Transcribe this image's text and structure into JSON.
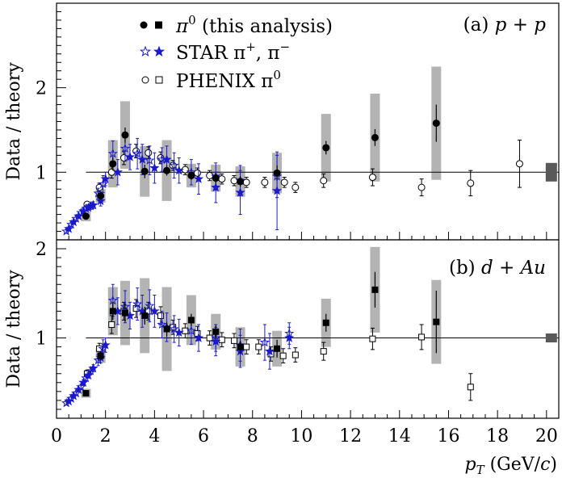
{
  "chart_data": {
    "type": "scatter",
    "xlabel_var": "p",
    "xlabel_sub": "T",
    "xlabel_unit_pre": "(GeV/",
    "xlabel_unit_var": "c",
    "xlabel_unit_post": ")",
    "xlim": [
      0,
      20.5
    ],
    "x_ticks": [
      0,
      2,
      4,
      6,
      8,
      10,
      12,
      14,
      16,
      18,
      20
    ],
    "legend": {
      "pi0_label": "π",
      "pi0_sup": "0",
      "pi0_rest": " (this analysis)",
      "star_label": "STAR π",
      "star_sup1": "+",
      "star_mid": ", π",
      "star_sup2": "−",
      "phenix_label": "PHENIX π",
      "phenix_sup": "0"
    },
    "colors": {
      "star": "#1a1acc",
      "band": "#b3b3b3",
      "norm_box": "#595959"
    },
    "panels": [
      {
        "id": "a",
        "label_pre": "(a)",
        "label_system": "p + p",
        "ylabel": "Data / theory",
        "ylim": [
          0.2,
          3.0
        ],
        "y_ticks": [
          1,
          2
        ],
        "this_analysis": [
          {
            "x": 1.2,
            "y": 0.48,
            "err": 0.03,
            "sys": 0.06
          },
          {
            "x": 1.8,
            "y": 0.72,
            "err": 0.04,
            "sys": 0.08
          },
          {
            "x": 2.3,
            "y": 1.1,
            "err": 0.08,
            "sys": 0.28
          },
          {
            "x": 2.8,
            "y": 1.44,
            "err": 0.09,
            "sys": 0.4
          },
          {
            "x": 3.6,
            "y": 1.01,
            "err": 0.08,
            "sys": 0.3
          },
          {
            "x": 4.5,
            "y": 1.02,
            "err": 0.06,
            "sys": 0.36
          },
          {
            "x": 5.5,
            "y": 0.96,
            "err": 0.05,
            "sys": 0.14
          },
          {
            "x": 6.5,
            "y": 0.93,
            "err": 0.06,
            "sys": 0.16
          },
          {
            "x": 7.5,
            "y": 0.89,
            "err": 0.06,
            "sys": 0.18
          },
          {
            "x": 9.0,
            "y": 0.99,
            "err": 0.09,
            "sys": 0.24
          },
          {
            "x": 11.0,
            "y": 1.29,
            "err": 0.08,
            "sys": 0.4
          },
          {
            "x": 13.0,
            "y": 1.41,
            "err": 0.1,
            "sys": 0.52
          },
          {
            "x": 15.5,
            "y": 1.58,
            "err": 0.22,
            "sys": 0.67
          }
        ],
        "star_plus": [
          {
            "x": 0.4,
            "y": 0.3,
            "err": 0.02
          },
          {
            "x": 0.6,
            "y": 0.38,
            "err": 0.02
          },
          {
            "x": 0.8,
            "y": 0.45,
            "err": 0.02
          },
          {
            "x": 1.0,
            "y": 0.52,
            "err": 0.03
          },
          {
            "x": 1.2,
            "y": 0.57,
            "err": 0.03
          },
          {
            "x": 1.4,
            "y": 0.6,
            "err": 0.04
          },
          {
            "x": 1.7,
            "y": 0.75,
            "err": 0.06
          },
          {
            "x": 1.9,
            "y": 0.86,
            "err": 0.1
          },
          {
            "x": 2.3,
            "y": 1.22,
            "err": 0.15
          },
          {
            "x": 2.8,
            "y": 1.28,
            "err": 0.15
          },
          {
            "x": 3.3,
            "y": 1.22,
            "err": 0.18
          },
          {
            "x": 3.8,
            "y": 1.14,
            "err": 0.17
          },
          {
            "x": 4.3,
            "y": 1.15,
            "err": 0.14
          },
          {
            "x": 4.8,
            "y": 1.08,
            "err": 0.15
          },
          {
            "x": 5.5,
            "y": 1.0,
            "err": 0.15
          },
          {
            "x": 6.5,
            "y": 0.95,
            "err": 0.16
          },
          {
            "x": 7.5,
            "y": 0.9,
            "err": 0.18
          },
          {
            "x": 9.0,
            "y": 0.95,
            "err": 0.25
          }
        ],
        "star_minus": [
          {
            "x": 0.5,
            "y": 0.33,
            "err": 0.02
          },
          {
            "x": 0.7,
            "y": 0.41,
            "err": 0.02
          },
          {
            "x": 0.9,
            "y": 0.48,
            "err": 0.02
          },
          {
            "x": 1.1,
            "y": 0.54,
            "err": 0.03
          },
          {
            "x": 1.3,
            "y": 0.58,
            "err": 0.03
          },
          {
            "x": 1.5,
            "y": 0.61,
            "err": 0.04
          },
          {
            "x": 1.8,
            "y": 0.66,
            "err": 0.06
          },
          {
            "x": 2.0,
            "y": 0.92,
            "err": 0.08
          },
          {
            "x": 2.5,
            "y": 1.0,
            "err": 0.15
          },
          {
            "x": 3.0,
            "y": 1.18,
            "err": 0.15
          },
          {
            "x": 3.5,
            "y": 1.15,
            "err": 0.18
          },
          {
            "x": 4.0,
            "y": 1.05,
            "err": 0.18
          },
          {
            "x": 4.5,
            "y": 1.15,
            "err": 0.16
          },
          {
            "x": 5.0,
            "y": 1.02,
            "err": 0.15
          },
          {
            "x": 5.8,
            "y": 0.92,
            "err": 0.18
          },
          {
            "x": 6.5,
            "y": 0.82,
            "err": 0.18
          },
          {
            "x": 7.5,
            "y": 0.76,
            "err": 0.26
          },
          {
            "x": 9.0,
            "y": 0.78,
            "err": 0.46
          }
        ],
        "phenix": [
          {
            "x": 1.25,
            "y": 0.62,
            "err": 0.03
          },
          {
            "x": 1.75,
            "y": 0.82,
            "err": 0.05
          },
          {
            "x": 2.25,
            "y": 1.0,
            "err": 0.07
          },
          {
            "x": 2.75,
            "y": 1.17,
            "err": 0.08
          },
          {
            "x": 3.25,
            "y": 1.25,
            "err": 0.08
          },
          {
            "x": 3.75,
            "y": 1.23,
            "err": 0.07
          },
          {
            "x": 4.25,
            "y": 1.17,
            "err": 0.07
          },
          {
            "x": 4.75,
            "y": 1.08,
            "err": 0.06
          },
          {
            "x": 5.25,
            "y": 1.03,
            "err": 0.06
          },
          {
            "x": 5.75,
            "y": 0.99,
            "err": 0.06
          },
          {
            "x": 6.25,
            "y": 0.96,
            "err": 0.06
          },
          {
            "x": 6.75,
            "y": 0.92,
            "err": 0.06
          },
          {
            "x": 7.25,
            "y": 0.9,
            "err": 0.06
          },
          {
            "x": 7.75,
            "y": 0.88,
            "err": 0.06
          },
          {
            "x": 8.5,
            "y": 0.88,
            "err": 0.06
          },
          {
            "x": 9.3,
            "y": 0.88,
            "err": 0.06
          },
          {
            "x": 9.75,
            "y": 0.82,
            "err": 0.06
          },
          {
            "x": 10.9,
            "y": 0.9,
            "err": 0.08
          },
          {
            "x": 12.9,
            "y": 0.94,
            "err": 0.1
          },
          {
            "x": 14.9,
            "y": 0.82,
            "err": 0.1
          },
          {
            "x": 16.9,
            "y": 0.87,
            "err": 0.15
          },
          {
            "x": 18.9,
            "y": 1.1,
            "err": 0.28
          }
        ],
        "norm_box": {
          "x": 20.0,
          "y": 1.0,
          "half_height": 0.11
        }
      },
      {
        "id": "b",
        "label_pre": "(b)",
        "label_system": "d + Au",
        "ylabel": "Data / theory",
        "ylim": [
          0.1,
          2.1
        ],
        "y_ticks": [
          1,
          2
        ],
        "this_analysis": [
          {
            "x": 1.2,
            "y": 0.38,
            "err": 0.03,
            "sys": 0.05
          },
          {
            "x": 1.8,
            "y": 0.8,
            "err": 0.05,
            "sys": 0.08
          },
          {
            "x": 2.3,
            "y": 1.3,
            "err": 0.1,
            "sys": 0.27
          },
          {
            "x": 2.8,
            "y": 1.28,
            "err": 0.1,
            "sys": 0.36
          },
          {
            "x": 3.6,
            "y": 1.25,
            "err": 0.1,
            "sys": 0.42
          },
          {
            "x": 4.5,
            "y": 1.1,
            "err": 0.08,
            "sys": 0.47
          },
          {
            "x": 5.5,
            "y": 1.2,
            "err": 0.07,
            "sys": 0.28
          },
          {
            "x": 6.5,
            "y": 1.07,
            "err": 0.07,
            "sys": 0.2
          },
          {
            "x": 7.5,
            "y": 0.9,
            "err": 0.07,
            "sys": 0.22
          },
          {
            "x": 9.0,
            "y": 0.88,
            "err": 0.1,
            "sys": 0.2
          },
          {
            "x": 11.0,
            "y": 1.17,
            "err": 0.1,
            "sys": 0.27
          },
          {
            "x": 13.0,
            "y": 1.54,
            "err": 0.2,
            "sys": 0.48
          },
          {
            "x": 15.5,
            "y": 1.18,
            "err": 0.35,
            "sys": 0.47
          }
        ],
        "star_plus": [
          {
            "x": 0.4,
            "y": 0.27,
            "err": 0.02
          },
          {
            "x": 0.6,
            "y": 0.32,
            "err": 0.02
          },
          {
            "x": 0.8,
            "y": 0.38,
            "err": 0.02
          },
          {
            "x": 1.0,
            "y": 0.45,
            "err": 0.03
          },
          {
            "x": 1.2,
            "y": 0.55,
            "err": 0.03
          },
          {
            "x": 1.4,
            "y": 0.63,
            "err": 0.04
          },
          {
            "x": 1.7,
            "y": 0.75,
            "err": 0.06
          },
          {
            "x": 1.9,
            "y": 0.88,
            "err": 0.1
          },
          {
            "x": 2.3,
            "y": 1.42,
            "err": 0.18
          },
          {
            "x": 2.8,
            "y": 1.35,
            "err": 0.18
          },
          {
            "x": 3.3,
            "y": 1.38,
            "err": 0.18
          },
          {
            "x": 3.8,
            "y": 1.36,
            "err": 0.18
          },
          {
            "x": 4.3,
            "y": 1.15,
            "err": 0.15
          },
          {
            "x": 4.8,
            "y": 1.1,
            "err": 0.15
          },
          {
            "x": 5.5,
            "y": 1.08,
            "err": 0.15
          },
          {
            "x": 6.5,
            "y": 1.0,
            "err": 0.15
          },
          {
            "x": 7.5,
            "y": 0.92,
            "err": 0.18
          },
          {
            "x": 8.5,
            "y": 0.95,
            "err": 0.2
          },
          {
            "x": 9.5,
            "y": 1.05,
            "err": 0.12
          }
        ],
        "star_minus": [
          {
            "x": 0.5,
            "y": 0.29,
            "err": 0.02
          },
          {
            "x": 0.7,
            "y": 0.35,
            "err": 0.02
          },
          {
            "x": 0.9,
            "y": 0.42,
            "err": 0.02
          },
          {
            "x": 1.1,
            "y": 0.5,
            "err": 0.03
          },
          {
            "x": 1.3,
            "y": 0.58,
            "err": 0.03
          },
          {
            "x": 1.5,
            "y": 0.66,
            "err": 0.04
          },
          {
            "x": 1.8,
            "y": 0.78,
            "err": 0.06
          },
          {
            "x": 2.0,
            "y": 0.92,
            "err": 0.08
          },
          {
            "x": 2.5,
            "y": 1.3,
            "err": 0.15
          },
          {
            "x": 3.0,
            "y": 1.25,
            "err": 0.15
          },
          {
            "x": 3.5,
            "y": 1.3,
            "err": 0.18
          },
          {
            "x": 4.0,
            "y": 1.3,
            "err": 0.18
          },
          {
            "x": 4.5,
            "y": 1.12,
            "err": 0.16
          },
          {
            "x": 5.0,
            "y": 1.06,
            "err": 0.15
          },
          {
            "x": 5.8,
            "y": 1.0,
            "err": 0.15
          },
          {
            "x": 6.5,
            "y": 0.96,
            "err": 0.16
          },
          {
            "x": 7.5,
            "y": 0.85,
            "err": 0.18
          },
          {
            "x": 8.7,
            "y": 0.85,
            "err": 0.2
          },
          {
            "x": 9.5,
            "y": 1.0,
            "err": 0.12
          }
        ],
        "phenix": [
          {
            "x": 1.25,
            "y": 0.6,
            "err": 0.04
          },
          {
            "x": 1.75,
            "y": 0.88,
            "err": 0.06
          },
          {
            "x": 2.25,
            "y": 1.15,
            "err": 0.1
          },
          {
            "x": 2.75,
            "y": 1.3,
            "err": 0.1
          },
          {
            "x": 3.25,
            "y": 1.33,
            "err": 0.1
          },
          {
            "x": 3.75,
            "y": 1.3,
            "err": 0.1
          },
          {
            "x": 4.25,
            "y": 1.25,
            "err": 0.1
          },
          {
            "x": 4.75,
            "y": 1.12,
            "err": 0.08
          },
          {
            "x": 5.25,
            "y": 1.08,
            "err": 0.08
          },
          {
            "x": 5.75,
            "y": 1.05,
            "err": 0.08
          },
          {
            "x": 6.25,
            "y": 1.0,
            "err": 0.08
          },
          {
            "x": 6.75,
            "y": 0.98,
            "err": 0.08
          },
          {
            "x": 7.25,
            "y": 0.97,
            "err": 0.08
          },
          {
            "x": 7.75,
            "y": 0.9,
            "err": 0.08
          },
          {
            "x": 8.25,
            "y": 0.9,
            "err": 0.08
          },
          {
            "x": 8.75,
            "y": 0.82,
            "err": 0.08
          },
          {
            "x": 9.25,
            "y": 0.8,
            "err": 0.08
          },
          {
            "x": 9.75,
            "y": 0.81,
            "err": 0.08
          },
          {
            "x": 10.9,
            "y": 0.85,
            "err": 0.1
          },
          {
            "x": 12.9,
            "y": 0.99,
            "err": 0.12
          },
          {
            "x": 14.9,
            "y": 1.01,
            "err": 0.14
          },
          {
            "x": 16.9,
            "y": 0.45,
            "err": 0.15
          }
        ],
        "norm_box": {
          "x": 20.0,
          "y": 1.0,
          "half_height": 0.05
        }
      }
    ]
  }
}
